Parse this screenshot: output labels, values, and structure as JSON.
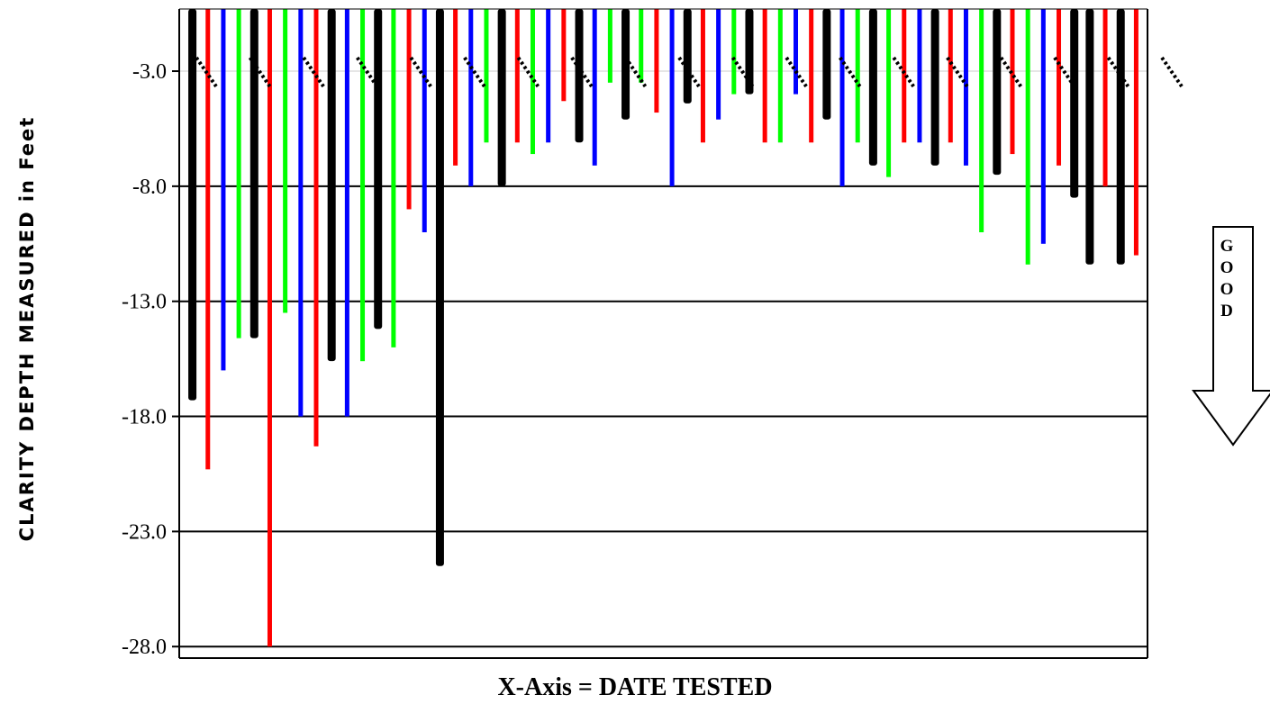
{
  "chart_data": {
    "type": "bar",
    "ylabel": "CLARITY DEPTH MEASURED in Feet",
    "xlabel": "X-Axis = DATE TESTED",
    "yticks": [
      -3.0,
      -8.0,
      -13.0,
      -18.0,
      -23.0,
      -28.0
    ],
    "ytick_labels": [
      "-3.0",
      "-8.0",
      "-13.0",
      "-18.0",
      "-23.0",
      "-28.0"
    ],
    "ylim": [
      -28.5,
      -0.3
    ],
    "grid": true,
    "legend": "none",
    "annotation": {
      "label": "GOOD",
      "letters": [
        "G",
        "O",
        "O",
        "D"
      ],
      "direction": "down"
    },
    "colors": {
      "black": "#000000",
      "red": "#ff0000",
      "green": "#00ff00",
      "blue": "#0000ff"
    },
    "series": [
      {
        "color": "#000000",
        "values": [
          -17.3,
          -14.6,
          -15.6,
          -14.2,
          -24.5,
          -8.0,
          -6.1,
          -5.1,
          -4.4,
          -4.0,
          -5.1,
          -7.1,
          -7.1,
          -7.5,
          -8.5,
          -11.4,
          -11.4
        ]
      },
      {
        "color": "#ff0000",
        "values": [
          -20.3,
          -28.0,
          -19.3,
          -9.0,
          -7.1,
          -6.1,
          -4.3,
          -4.8,
          -6.1,
          -6.1,
          -6.1,
          -6.1,
          -6.1,
          -6.6,
          -7.1,
          -8.0,
          -11.0
        ]
      },
      {
        "color": "#00ff00",
        "values": [
          -14.6,
          -13.5,
          -15.6,
          -15.0,
          -6.1,
          -6.6,
          -3.5,
          -3.5,
          -4.0,
          -6.1,
          -6.1,
          -7.6,
          -10.0,
          -11.4
        ]
      },
      {
        "color": "#0000ff",
        "values": [
          -16.0,
          -18.0,
          -18.0,
          -10.0,
          -8.0,
          -6.1,
          -7.1,
          -8.0,
          -5.1,
          -4.0,
          -8.0,
          -6.1,
          -7.1,
          -10.5
        ]
      }
    ],
    "bars_description": "Downward bars hanging from top axis; each sample date shown as a black/red/green/blue group. Date tick labels are rotated and illegible in the source."
  }
}
